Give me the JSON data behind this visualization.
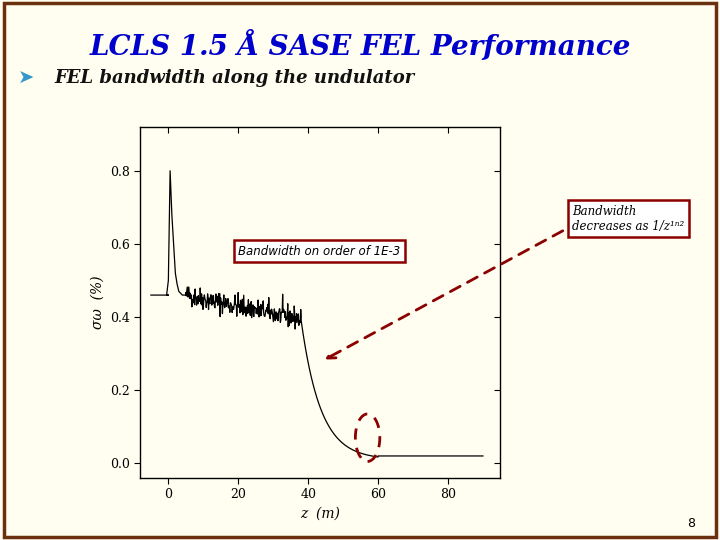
{
  "title": "LCLS 1.5 Å SASE FEL Performance",
  "subtitle": "FEL bandwidth along the undulator",
  "bg_color": "#FFFEF0",
  "slide_border_color": "#6B3010",
  "title_color": "#0000CC",
  "xlabel": "z  (m)",
  "xlim": [
    -8,
    95
  ],
  "ylim": [
    -0.04,
    0.92
  ],
  "yticks": [
    0.0,
    0.2,
    0.4,
    0.6,
    0.8
  ],
  "ytick_labels": [
    "0.0",
    "0.2",
    "0.4",
    "0.6",
    "0.8"
  ],
  "xticks": [
    0,
    20,
    40,
    60,
    80
  ],
  "xtick_labels": [
    "0",
    "20",
    "40",
    "60",
    "80"
  ],
  "annotation1_text": "Bandwidth on order of 1E-3",
  "page_number": "8",
  "arrow_color": "#8B0000",
  "box_edge_color": "#8B0000"
}
